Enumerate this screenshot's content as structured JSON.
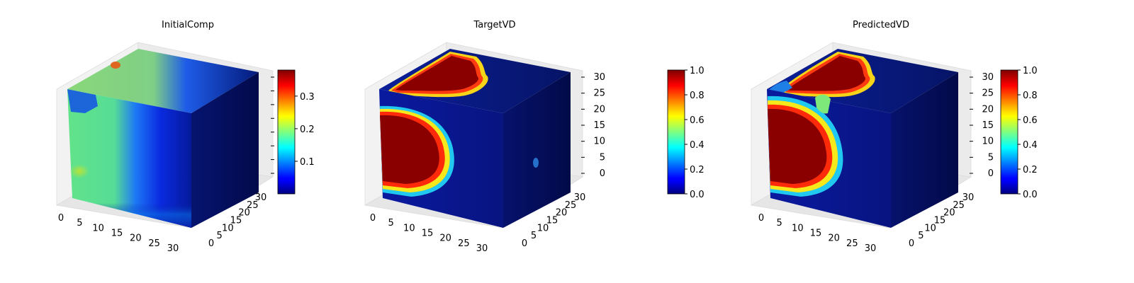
{
  "colormap": "jet",
  "chart_data": [
    {
      "type": "3d-voxel",
      "title": "InitialComp",
      "x_ticks": [
        "0",
        "5",
        "10",
        "15",
        "20",
        "25",
        "30"
      ],
      "y_ticks": [
        "0",
        "5",
        "10",
        "15",
        "20",
        "25",
        "30"
      ],
      "z_ticks": [],
      "grid_size": 32,
      "colorbar": {
        "range": [
          0.0,
          0.38
        ],
        "ticks": [
          "0.1",
          "0.2",
          "0.3"
        ]
      }
    },
    {
      "type": "3d-voxel",
      "title": "TargetVD",
      "x_ticks": [
        "0",
        "5",
        "10",
        "15",
        "20",
        "25",
        "30"
      ],
      "y_ticks": [
        "0",
        "5",
        "10",
        "15",
        "20",
        "25",
        "30"
      ],
      "z_ticks": [
        "0",
        "5",
        "10",
        "15",
        "20",
        "25",
        "30"
      ],
      "grid_size": 32,
      "colorbar": {
        "range": [
          0.0,
          1.0
        ],
        "ticks": [
          "0.0",
          "0.2",
          "0.4",
          "0.6",
          "0.8",
          "1.0"
        ]
      }
    },
    {
      "type": "3d-voxel",
      "title": "PredictedVD",
      "x_ticks": [
        "0",
        "5",
        "10",
        "15",
        "20",
        "25",
        "30"
      ],
      "y_ticks": [
        "0",
        "5",
        "10",
        "15",
        "20",
        "25",
        "30"
      ],
      "z_ticks": [
        "0",
        "5",
        "10",
        "15",
        "20",
        "25",
        "30"
      ],
      "grid_size": 32,
      "colorbar": {
        "range": [
          0.0,
          1.0
        ],
        "ticks": [
          "0.0",
          "0.2",
          "0.4",
          "0.6",
          "0.8",
          "1.0"
        ]
      }
    }
  ]
}
